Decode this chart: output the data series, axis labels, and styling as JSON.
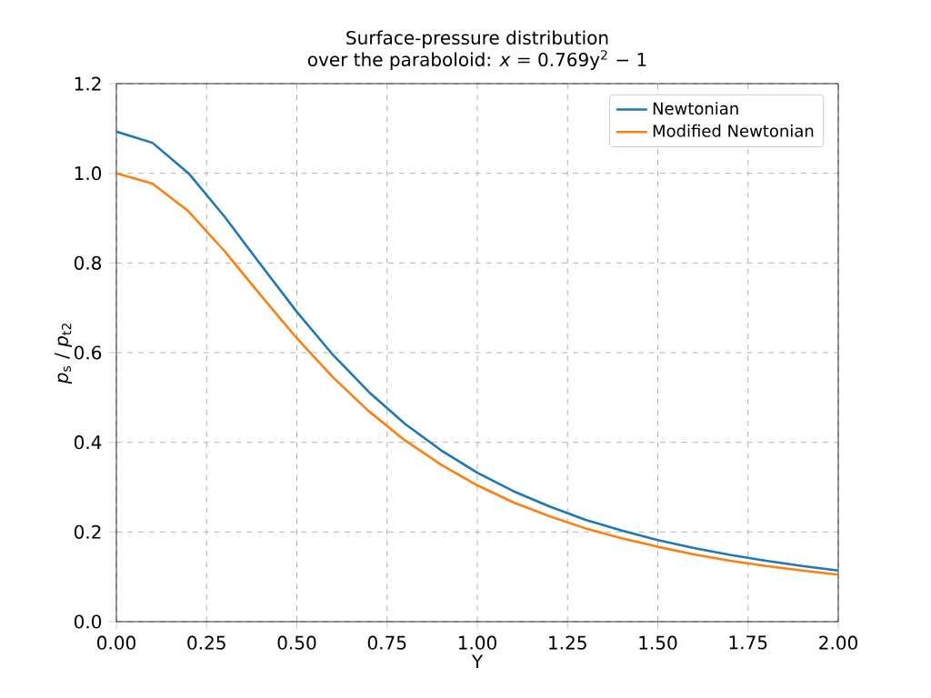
{
  "chart_data": {
    "type": "line",
    "title": "Surface-pressure distribution",
    "subtitle": "over the paraboloid: *x* = 0.769y$^{2}$ − 1",
    "xlabel": "Y",
    "ylabel": "*p*$_{s}$ / *p*$_{t2}$",
    "x": [
      0,
      0.1,
      0.2,
      0.3,
      0.4,
      0.5,
      0.6,
      0.7,
      0.8,
      0.9,
      1.0,
      1.1,
      1.2,
      1.3,
      1.4,
      1.5,
      1.6,
      1.7,
      1.8,
      1.9,
      2.0
    ],
    "series": [
      {
        "name": "Newtonian",
        "color": "#1f77b4",
        "values": [
          1.093,
          1.068,
          1.0,
          0.903,
          0.796,
          0.691,
          0.595,
          0.512,
          0.441,
          0.382,
          0.332,
          0.291,
          0.257,
          0.227,
          0.203,
          0.182,
          0.164,
          0.149,
          0.136,
          0.124,
          0.114
        ]
      },
      {
        "name": "Modified Newtonian",
        "color": "#ff7f0e",
        "values": [
          1.0,
          0.977,
          0.915,
          0.826,
          0.728,
          0.632,
          0.545,
          0.469,
          0.404,
          0.35,
          0.304,
          0.266,
          0.235,
          0.208,
          0.186,
          0.167,
          0.15,
          0.136,
          0.124,
          0.114,
          0.105
        ]
      }
    ],
    "xlim": [
      0,
      2
    ],
    "ylim": [
      0,
      1.2
    ],
    "xticks": [
      {
        "value": 0,
        "label": "0.00"
      },
      {
        "value": 0.25,
        "label": "0.25"
      },
      {
        "value": 0.5,
        "label": "0.50"
      },
      {
        "value": 0.75,
        "label": "0.75"
      },
      {
        "value": 1.0,
        "label": "1.00"
      },
      {
        "value": 1.25,
        "label": "1.25"
      },
      {
        "value": 1.5,
        "label": "1.50"
      },
      {
        "value": 1.75,
        "label": "1.75"
      },
      {
        "value": 2.0,
        "label": "2.00"
      }
    ],
    "yticks": [
      {
        "value": 0,
        "label": "0.0"
      },
      {
        "value": 0.2,
        "label": "0.2"
      },
      {
        "value": 0.4,
        "label": "0.4"
      },
      {
        "value": 0.6,
        "label": "0.6"
      },
      {
        "value": 0.8,
        "label": "0.8"
      },
      {
        "value": 1.0,
        "label": "1.0"
      },
      {
        "value": 1.2,
        "label": "1.2"
      }
    ],
    "grid": true,
    "legend": "top right",
    "marker": "none",
    "line_style": "solid"
  }
}
